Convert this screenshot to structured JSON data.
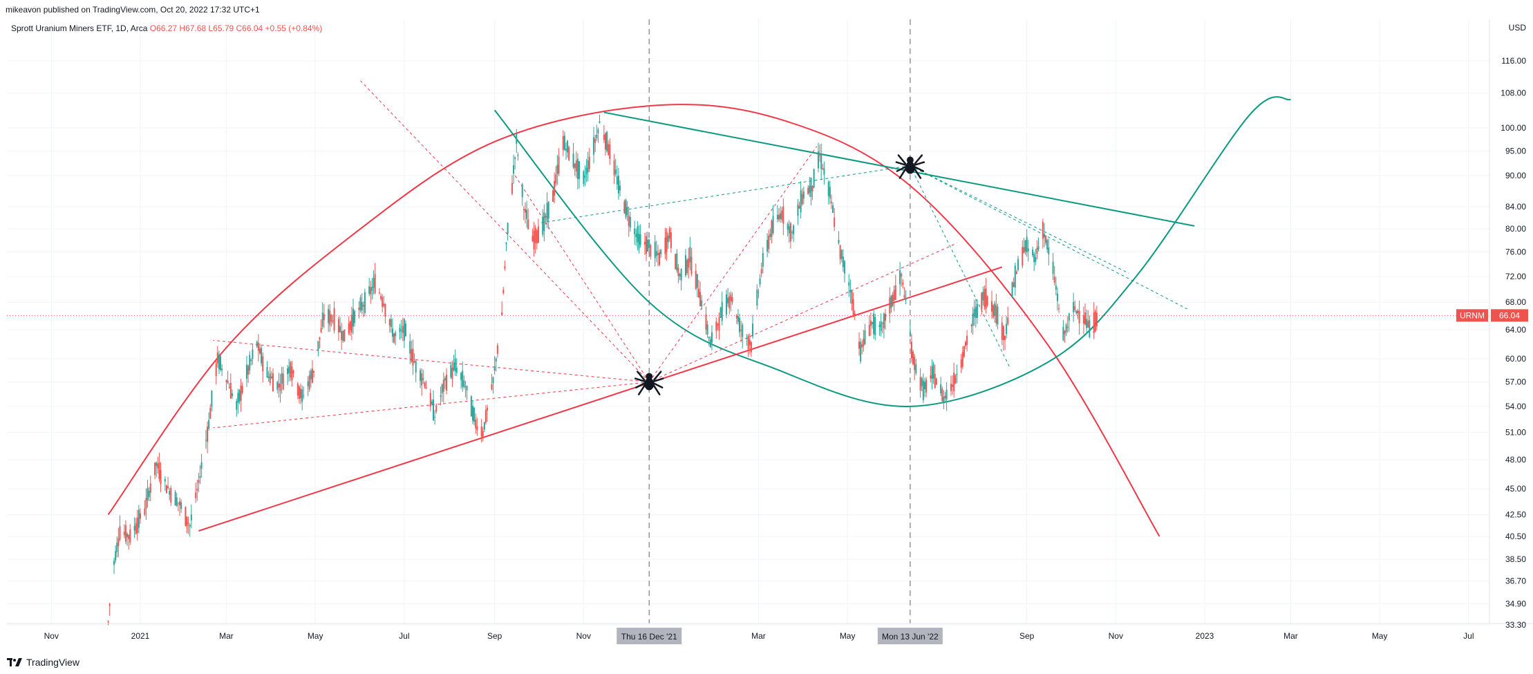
{
  "header": {
    "published": "mikeavon published on TradingView.com, Oct 20, 2022 17:32 UTC+1"
  },
  "footer": {
    "brand": "TradingView"
  },
  "chart_data": {
    "type": "candlestick",
    "title": "Sprott Uranium Miners ETF, 1D, Arca",
    "ohlc": {
      "open": "O66.27",
      "high": "H67.68",
      "low": "L65.79",
      "close": "C66.04",
      "change": "+0.55 (+0.84%)"
    },
    "currency": "USD",
    "symbol": "URNM",
    "last_price": 66.04,
    "scale": "log",
    "y_ticks": [
      116.0,
      108.0,
      100.0,
      95.0,
      90.0,
      84.0,
      80.0,
      76.0,
      72.0,
      68.0,
      64.0,
      60.0,
      57.0,
      54.0,
      51.0,
      48.0,
      45.0,
      42.5,
      40.5,
      38.5,
      36.7,
      34.9,
      33.3
    ],
    "y_tick_labels": [
      "116.00",
      "108.00",
      "100.00",
      "95.00",
      "90.00",
      "84.00",
      "80.00",
      "76.00",
      "72.00",
      "68.00",
      "64.00",
      "60.00",
      "57.00",
      "54.00",
      "51.00",
      "48.00",
      "45.00",
      "42.50",
      "40.50",
      "38.50",
      "36.70",
      "34.90",
      "33.30"
    ],
    "x_ticks": [
      {
        "date": "2020-11-01",
        "label": "Nov"
      },
      {
        "date": "2021-01-01",
        "label": "2021"
      },
      {
        "date": "2021-03-01",
        "label": "Mar"
      },
      {
        "date": "2021-05-01",
        "label": "May"
      },
      {
        "date": "2021-07-01",
        "label": "Jul"
      },
      {
        "date": "2021-09-01",
        "label": "Sep"
      },
      {
        "date": "2021-11-01",
        "label": "Nov"
      },
      {
        "date": "2022-03-01",
        "label": "Mar"
      },
      {
        "date": "2022-05-01",
        "label": "May"
      },
      {
        "date": "2022-09-01",
        "label": "Sep"
      },
      {
        "date": "2022-11-01",
        "label": "Nov"
      },
      {
        "date": "2023-01-01",
        "label": "2023"
      },
      {
        "date": "2023-03-01",
        "label": "Mar"
      },
      {
        "date": "2023-05-01",
        "label": "May"
      },
      {
        "date": "2023-07-01",
        "label": "Jul"
      }
    ],
    "markers": [
      {
        "date": "2021-12-16",
        "label": "Thu 16 Dec '21"
      },
      {
        "date": "2022-06-13",
        "label": "Mon 13 Jun '22"
      }
    ],
    "colors": {
      "up": "#26a69a",
      "down": "#ef5350",
      "red_drawing": "#f23645",
      "green_drawing": "#089981",
      "marker_bg": "#b2b5be"
    },
    "price_path": [
      [
        "2020-12-10",
        33.5
      ],
      [
        "2020-12-13",
        37.5
      ],
      [
        "2020-12-18",
        41.0
      ],
      [
        "2020-12-25",
        40.5
      ],
      [
        "2021-01-04",
        43.0
      ],
      [
        "2021-01-12",
        47.5
      ],
      [
        "2021-01-20",
        45.0
      ],
      [
        "2021-01-28",
        43.5
      ],
      [
        "2021-02-04",
        41.5
      ],
      [
        "2021-02-10",
        45.5
      ],
      [
        "2021-02-17",
        52.0
      ],
      [
        "2021-02-23",
        60.0
      ],
      [
        "2021-03-01",
        57.5
      ],
      [
        "2021-03-08",
        54.0
      ],
      [
        "2021-03-15",
        58.0
      ],
      [
        "2021-03-22",
        62.0
      ],
      [
        "2021-03-29",
        58.0
      ],
      [
        "2021-04-06",
        56.5
      ],
      [
        "2021-04-14",
        59.0
      ],
      [
        "2021-04-22",
        55.0
      ],
      [
        "2021-04-30",
        58.5
      ],
      [
        "2021-05-07",
        66.0
      ],
      [
        "2021-05-14",
        65.5
      ],
      [
        "2021-05-21",
        63.0
      ],
      [
        "2021-05-28",
        66.0
      ],
      [
        "2021-06-04",
        68.0
      ],
      [
        "2021-06-11",
        71.0
      ],
      [
        "2021-06-17",
        68.0
      ],
      [
        "2021-06-24",
        63.0
      ],
      [
        "2021-07-01",
        64.0
      ],
      [
        "2021-07-09",
        59.0
      ],
      [
        "2021-07-15",
        57.0
      ],
      [
        "2021-07-22",
        53.0
      ],
      [
        "2021-07-29",
        57.0
      ],
      [
        "2021-08-05",
        59.0
      ],
      [
        "2021-08-12",
        56.5
      ],
      [
        "2021-08-19",
        52.0
      ],
      [
        "2021-08-24",
        51.0
      ],
      [
        "2021-08-31",
        57.0
      ],
      [
        "2021-09-06",
        66.0
      ],
      [
        "2021-09-09",
        77.0
      ],
      [
        "2021-09-13",
        88.0
      ],
      [
        "2021-09-16",
        97.0
      ],
      [
        "2021-09-21",
        84.0
      ],
      [
        "2021-09-27",
        78.0
      ],
      [
        "2021-10-05",
        81.0
      ],
      [
        "2021-10-11",
        86.0
      ],
      [
        "2021-10-18",
        97.0
      ],
      [
        "2021-10-25",
        93.0
      ],
      [
        "2021-11-01",
        89.0
      ],
      [
        "2021-11-08",
        96.0
      ],
      [
        "2021-11-12",
        101.0
      ],
      [
        "2021-11-18",
        96.0
      ],
      [
        "2021-11-25",
        88.0
      ],
      [
        "2021-12-02",
        82.0
      ],
      [
        "2021-12-09",
        78.0
      ],
      [
        "2021-12-16",
        77.0
      ],
      [
        "2021-12-23",
        75.0
      ],
      [
        "2021-12-30",
        79.0
      ],
      [
        "2022-01-06",
        72.0
      ],
      [
        "2022-01-13",
        75.0
      ],
      [
        "2022-01-20",
        69.0
      ],
      [
        "2022-01-27",
        62.0
      ],
      [
        "2022-02-03",
        66.0
      ],
      [
        "2022-02-10",
        69.0
      ],
      [
        "2022-02-17",
        64.0
      ],
      [
        "2022-02-24",
        62.0
      ],
      [
        "2022-03-03",
        73.0
      ],
      [
        "2022-03-10",
        80.0
      ],
      [
        "2022-03-17",
        83.0
      ],
      [
        "2022-03-24",
        79.0
      ],
      [
        "2022-03-31",
        86.0
      ],
      [
        "2022-04-07",
        88.0
      ],
      [
        "2022-04-12",
        94.0
      ],
      [
        "2022-04-19",
        86.0
      ],
      [
        "2022-04-26",
        76.0
      ],
      [
        "2022-05-03",
        70.0
      ],
      [
        "2022-05-10",
        61.0
      ],
      [
        "2022-05-17",
        65.0
      ],
      [
        "2022-05-24",
        64.0
      ],
      [
        "2022-05-31",
        68.0
      ],
      [
        "2022-06-07",
        72.0
      ],
      [
        "2022-06-10",
        68.0
      ],
      [
        "2022-06-15",
        60.0
      ],
      [
        "2022-06-22",
        56.0
      ],
      [
        "2022-06-29",
        58.0
      ],
      [
        "2022-07-06",
        55.0
      ],
      [
        "2022-07-13",
        57.0
      ],
      [
        "2022-07-20",
        61.0
      ],
      [
        "2022-07-27",
        66.0
      ],
      [
        "2022-08-03",
        69.0
      ],
      [
        "2022-08-10",
        67.0
      ],
      [
        "2022-08-17",
        63.0
      ],
      [
        "2022-08-24",
        72.0
      ],
      [
        "2022-08-31",
        77.0
      ],
      [
        "2022-09-07",
        75.0
      ],
      [
        "2022-09-12",
        80.0
      ],
      [
        "2022-09-19",
        73.0
      ],
      [
        "2022-09-26",
        63.0
      ],
      [
        "2022-10-03",
        67.0
      ],
      [
        "2022-10-10",
        66.0
      ],
      [
        "2022-10-14",
        64.0
      ],
      [
        "2022-10-20",
        66.04
      ]
    ],
    "drawings": [
      {
        "kind": "curve",
        "color": "red",
        "points": [
          [
            "2020-12-10",
            42.5
          ],
          [
            "2021-03-01",
            61.5
          ],
          [
            "2021-06-01",
            80.0
          ],
          [
            "2021-09-01",
            97.0
          ],
          [
            "2021-12-16",
            105.0
          ],
          [
            "2022-03-15",
            102.0
          ],
          [
            "2022-06-13",
            88.0
          ],
          [
            "2022-09-15",
            62.0
          ],
          [
            "2022-12-01",
            40.5
          ]
        ]
      },
      {
        "kind": "curve",
        "color": "green",
        "points": [
          [
            "2021-09-01",
            104.0
          ],
          [
            "2021-12-16",
            68.0
          ],
          [
            "2022-03-15",
            58.5
          ],
          [
            "2022-06-13",
            54.0
          ],
          [
            "2022-09-15",
            59.5
          ],
          [
            "2022-11-15",
            72.0
          ],
          [
            "2023-02-01",
            103.0
          ],
          [
            "2023-03-01",
            106.5
          ]
        ]
      },
      {
        "kind": "line",
        "color": "red",
        "from": [
          "2021-02-10",
          41.0
        ],
        "to": [
          "2022-08-15",
          73.5
        ]
      },
      {
        "kind": "line",
        "color": "green",
        "from": [
          "2021-11-15",
          103.5
        ],
        "to": [
          "2022-12-25",
          80.5
        ]
      },
      {
        "kind": "dashed",
        "color": "red",
        "from": [
          "2021-12-16",
          57.0
        ],
        "to": [
          "2021-06-01",
          111.0
        ]
      },
      {
        "kind": "dashed",
        "color": "red",
        "from": [
          "2021-12-16",
          57.0
        ],
        "to": [
          "2021-02-20",
          62.5
        ]
      },
      {
        "kind": "dashed",
        "color": "red",
        "from": [
          "2021-12-16",
          57.0
        ],
        "to": [
          "2021-02-20",
          51.5
        ]
      },
      {
        "kind": "dashed",
        "color": "red",
        "from": [
          "2021-12-16",
          57.0
        ],
        "to": [
          "2021-09-15",
          90.0
        ]
      },
      {
        "kind": "dashed",
        "color": "red",
        "from": [
          "2021-12-16",
          57.0
        ],
        "to": [
          "2022-04-10",
          96.0
        ]
      },
      {
        "kind": "dashed",
        "color": "red",
        "from": [
          "2021-12-16",
          57.0
        ],
        "to": [
          "2022-07-15",
          77.5
        ]
      },
      {
        "kind": "dashed",
        "color": "green",
        "from": [
          "2022-06-13",
          92.0
        ],
        "to": [
          "2021-10-01",
          81.0
        ]
      },
      {
        "kind": "dashed",
        "color": "green",
        "from": [
          "2022-06-13",
          92.0
        ],
        "to": [
          "2022-11-10",
          72.5
        ]
      },
      {
        "kind": "dashed",
        "color": "green",
        "from": [
          "2022-06-13",
          92.0
        ],
        "to": [
          "2022-12-20",
          67.0
        ]
      },
      {
        "kind": "dashed",
        "color": "green",
        "from": [
          "2022-06-13",
          92.0
        ],
        "to": [
          "2022-08-20",
          59.0
        ]
      }
    ],
    "icons": [
      {
        "name": "spider-icon",
        "date": "2021-12-16",
        "price": 57.0
      },
      {
        "name": "spider-icon",
        "date": "2022-06-13",
        "price": 92.0
      }
    ]
  }
}
